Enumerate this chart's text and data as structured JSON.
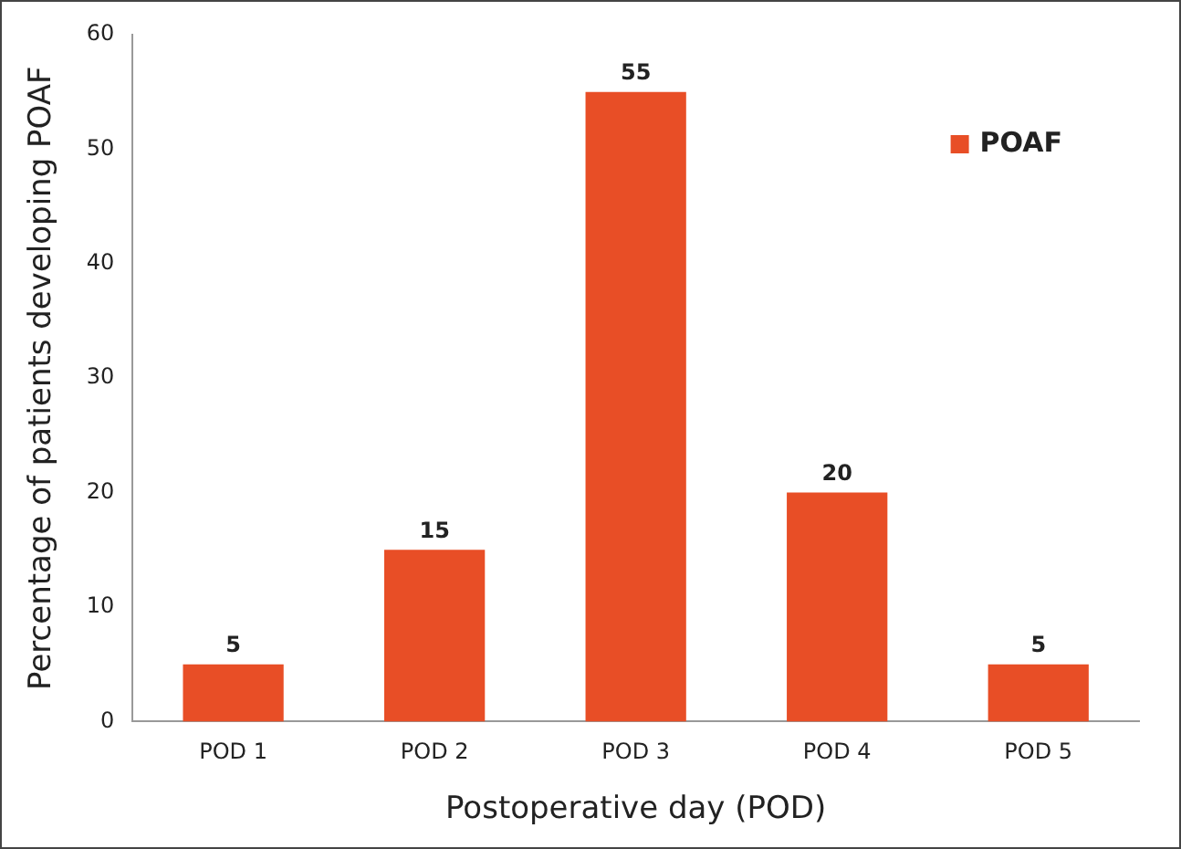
{
  "chart_data": {
    "type": "bar",
    "xlabel": "Postoperative day (POD)",
    "ylabel": "Percentage of patients developing POAF",
    "categories": [
      "POD 1",
      "POD 2",
      "POD 3",
      "POD 4",
      "POD 5"
    ],
    "series": [
      {
        "name": "POAF",
        "color": "#e84e26",
        "values": [
          5,
          15,
          55,
          20,
          5
        ]
      }
    ],
    "ylim": [
      0,
      60
    ],
    "yticks": [
      0,
      10,
      20,
      30,
      40,
      50,
      60
    ],
    "grid": false,
    "legend": "top right",
    "data_labels": true
  }
}
